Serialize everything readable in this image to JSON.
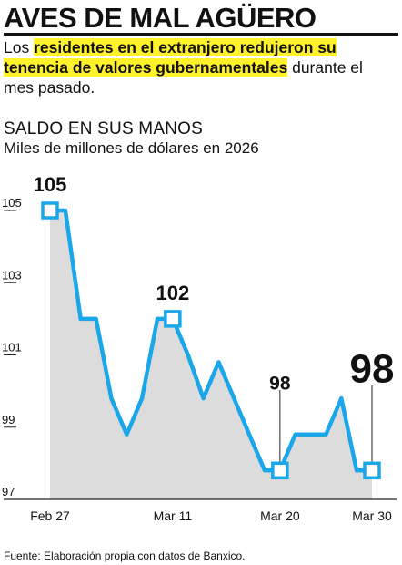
{
  "header": {
    "title": "AVES DE MAL AGÜERO",
    "subtitle_pre": "Los ",
    "subtitle_highlight": "residentes en el extranjero redujeron su tenencia de valores gubernamentales",
    "subtitle_post": " durante el mes pasado."
  },
  "chart_data": {
    "type": "area",
    "title": "SALDO EN SUS MANOS",
    "subtitle": "Miles de millones de dólares en 2026",
    "x": [
      "Feb 27",
      "Mar 2",
      "Mar 3",
      "Mar 4",
      "Mar 5",
      "Mar 6",
      "Mar 9",
      "Mar 10",
      "Mar 11",
      "Mar 12",
      "Mar 13",
      "Mar 16",
      "Mar 17",
      "Mar 18",
      "Mar 19",
      "Mar 20",
      "Mar 23",
      "Mar 24",
      "Mar 25",
      "Mar 26",
      "Mar 27",
      "Mar 30"
    ],
    "values": [
      105,
      105,
      102,
      102,
      99.8,
      98.8,
      99.8,
      102,
      102,
      101,
      99.8,
      100.8,
      99.8,
      98.8,
      97.8,
      97.8,
      98.8,
      98.8,
      98.8,
      99.8,
      97.8,
      97.8
    ],
    "ylim": [
      97,
      106
    ],
    "yticks": [
      "105",
      "103",
      "101",
      "99",
      "97"
    ],
    "xticks": [
      "Feb 27",
      "Mar 11",
      "Mar 20",
      "Mar 30"
    ],
    "annotations": [
      "105",
      "102",
      "98",
      "98"
    ],
    "grid": false,
    "line_color": "#1aa7ea",
    "fill_color": "#dcdcdc",
    "marker_color": "#1aa7ea"
  },
  "source": "Fuente: Elaboración propia con datos de Banxico."
}
